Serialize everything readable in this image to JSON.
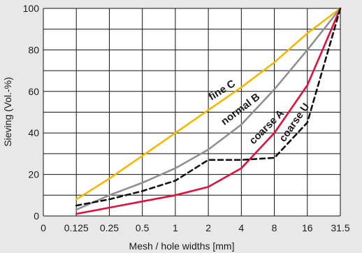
{
  "chart_data": {
    "type": "line",
    "title": "",
    "xlabel": "Mesh / hole widths [mm]",
    "ylabel": "Sieving (Vol.-%)",
    "x_scale": "categorical",
    "categories": [
      "0.125",
      "0.25",
      "0.5",
      "1",
      "2",
      "4",
      "8",
      "16",
      "31.5"
    ],
    "x_tick_labels": [
      "0",
      "0.125",
      "0.25",
      "0.5",
      "1",
      "2",
      "4",
      "8",
      "16",
      "31.5"
    ],
    "ylim": [
      0,
      100
    ],
    "y_ticks": [
      0,
      20,
      40,
      60,
      80,
      100
    ],
    "grid": true,
    "legend": "none (curves labeled inline)",
    "series": [
      {
        "name": "fine C",
        "color": "#f5b800",
        "dash": "solid",
        "values": [
          8,
          18,
          29,
          40,
          51,
          62,
          74,
          88,
          100
        ]
      },
      {
        "name": "normal B",
        "color": "#909090",
        "dash": "solid",
        "values": [
          3,
          10,
          16,
          23,
          32,
          44,
          61,
          80,
          100
        ]
      },
      {
        "name": "coarse A",
        "color": "#e0103c",
        "dash": "solid",
        "values": [
          1,
          4,
          7,
          10,
          14,
          23,
          40,
          63,
          100
        ]
      },
      {
        "name": "coarse U",
        "color": "#111111",
        "dash": "dashed",
        "values": [
          5,
          8,
          12,
          17,
          27,
          27,
          28,
          45,
          100
        ]
      }
    ]
  }
}
